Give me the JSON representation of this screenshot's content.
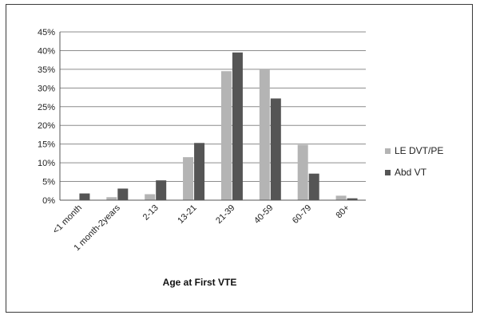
{
  "chart_data": {
    "type": "bar",
    "title": "",
    "xlabel": "Age at First VTE",
    "ylabel": "",
    "categories": [
      "<1 month",
      "1 month-2years",
      "2-13",
      "13-21",
      "21-39",
      "40-59",
      "60-79",
      "80+"
    ],
    "series": [
      {
        "name": "LE DVT/PE",
        "color": "#b4b4b4",
        "values": [
          0.0,
          0.8,
          1.6,
          11.5,
          34.5,
          35.0,
          14.8,
          1.2
        ]
      },
      {
        "name": "Abd VT",
        "color": "#555555",
        "values": [
          1.8,
          3.1,
          5.3,
          15.3,
          39.5,
          27.2,
          7.1,
          0.5
        ]
      }
    ],
    "yticks": [
      "0%",
      "5%",
      "10%",
      "15%",
      "20%",
      "25%",
      "30%",
      "35%",
      "40%",
      "45%"
    ],
    "ylim": [
      0,
      45
    ],
    "grid": true,
    "legend_position": "right"
  }
}
